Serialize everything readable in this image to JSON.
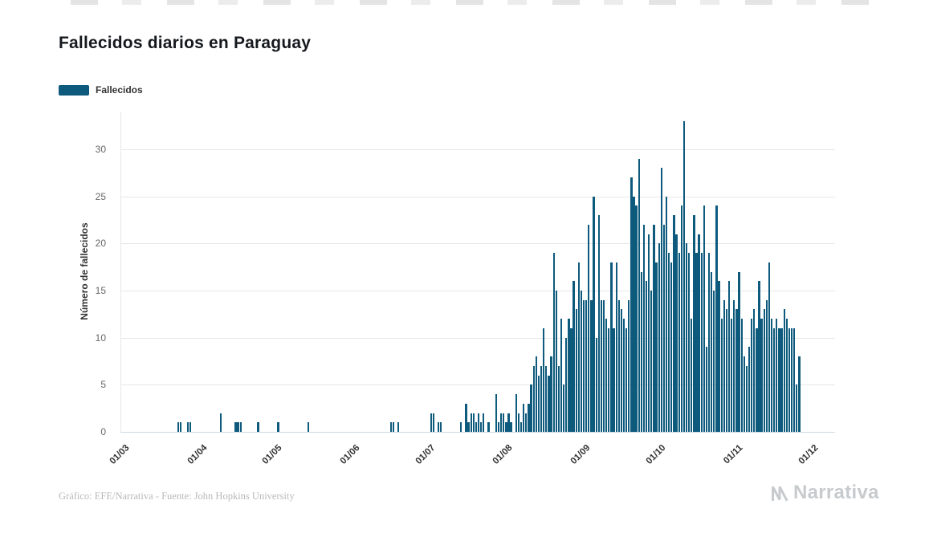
{
  "page": {
    "title": "Fallecidos diarios en Paraguay",
    "footer_credit": "Gráfico: EFE/Narrativa - Fuente: John Hopkins University",
    "brand": "Narrativa"
  },
  "legend": {
    "label": "Fallecidos"
  },
  "colors": {
    "bar": "#0E5A7D",
    "grid": "#E7E7E7",
    "axis_line": "#CDD7E0",
    "title": "#15191E",
    "legend_text": "#333333",
    "tick": "#666666",
    "x_tick": "#333333",
    "footer": "#B9B9B9",
    "brand": "#C7CBCE"
  },
  "chart_data": {
    "type": "bar",
    "title": "Fallecidos diarios en Paraguay",
    "series_name": "Fallecidos",
    "xlabel": "",
    "ylabel": "Número de fallecidos",
    "x_tick_labels": [
      "01/03",
      "01/04",
      "01/05",
      "01/06",
      "01/07",
      "01/08",
      "01/09",
      "01/10",
      "01/11",
      "01/12"
    ],
    "x_tick_day_offsets": [
      0,
      31,
      61,
      92,
      122,
      153,
      184,
      214,
      245,
      275
    ],
    "y_ticks": [
      0,
      5,
      10,
      15,
      20,
      25,
      30
    ],
    "ylim": [
      0,
      34
    ],
    "start_date": "01/03",
    "grid": "horizontal",
    "legend_position": "top-left",
    "values": [
      0,
      0,
      0,
      0,
      0,
      0,
      0,
      0,
      0,
      0,
      0,
      0,
      0,
      0,
      0,
      0,
      0,
      0,
      0,
      0,
      0,
      1,
      1,
      0,
      0,
      1,
      1,
      0,
      0,
      0,
      0,
      0,
      0,
      0,
      0,
      0,
      0,
      0,
      2,
      0,
      0,
      0,
      0,
      0,
      1,
      1,
      1,
      0,
      0,
      0,
      0,
      0,
      0,
      1,
      0,
      0,
      0,
      0,
      0,
      0,
      0,
      1,
      0,
      0,
      0,
      0,
      0,
      0,
      0,
      0,
      0,
      0,
      0,
      1,
      0,
      0,
      0,
      0,
      0,
      0,
      0,
      0,
      0,
      0,
      0,
      0,
      0,
      0,
      0,
      0,
      0,
      0,
      0,
      0,
      0,
      0,
      0,
      0,
      0,
      0,
      0,
      0,
      0,
      0,
      0,
      0,
      1,
      1,
      0,
      1,
      0,
      0,
      0,
      0,
      0,
      0,
      0,
      0,
      0,
      0,
      0,
      0,
      2,
      2,
      0,
      1,
      1,
      0,
      0,
      0,
      0,
      0,
      0,
      0,
      1,
      0,
      3,
      1,
      2,
      2,
      1,
      2,
      1,
      2,
      0,
      1,
      0,
      0,
      4,
      1,
      2,
      2,
      1,
      2,
      1,
      0,
      4,
      2,
      1,
      3,
      2,
      3,
      5,
      7,
      8,
      6,
      7,
      11,
      7,
      6,
      8,
      19,
      15,
      7,
      12,
      5,
      10,
      12,
      11,
      16,
      13,
      18,
      15,
      14,
      14,
      22,
      14,
      25,
      10,
      23,
      14,
      14,
      12,
      11,
      18,
      11,
      18,
      14,
      13,
      12,
      11,
      14,
      27,
      25,
      24,
      29,
      17,
      22,
      16,
      21,
      15,
      22,
      18,
      20,
      28,
      22,
      25,
      19,
      18,
      23,
      21,
      19,
      24,
      33,
      20,
      19,
      12,
      23,
      19,
      21,
      19,
      24,
      9,
      19,
      17,
      15,
      24,
      16,
      12,
      14,
      13,
      16,
      12,
      14,
      13,
      17,
      12,
      8,
      7,
      9,
      12,
      13,
      11,
      16,
      12,
      13,
      14,
      18,
      12,
      11,
      12,
      11,
      11,
      13,
      12,
      11,
      11,
      11,
      5,
      8,
      0,
      0,
      0,
      0,
      0
    ]
  }
}
